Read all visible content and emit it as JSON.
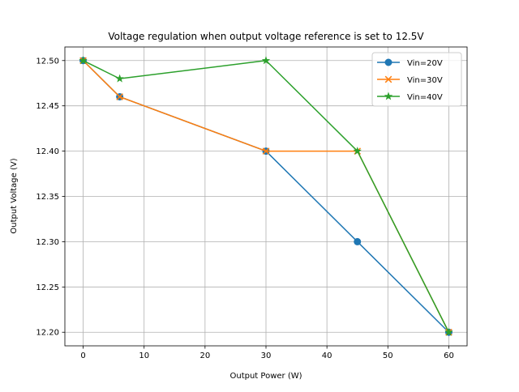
{
  "chart_data": {
    "type": "line",
    "title": "Voltage regulation when output voltage reference is set to 12.5V",
    "xlabel": "Output Power (W)",
    "ylabel": "Output Voltage (V)",
    "xlim": [
      -3,
      63
    ],
    "ylim": [
      12.185,
      12.515
    ],
    "grid": true,
    "legend_position": "top-right",
    "xticks": [
      0,
      10,
      20,
      30,
      40,
      50,
      60
    ],
    "xtick_labels": [
      "0",
      "10",
      "20",
      "30",
      "40",
      "50",
      "60"
    ],
    "yticks": [
      12.2,
      12.25,
      12.3,
      12.35,
      12.4,
      12.45,
      12.5
    ],
    "ytick_labels": [
      "12.20",
      "12.25",
      "12.30",
      "12.35",
      "12.40",
      "12.45",
      "12.50"
    ],
    "series": [
      {
        "name": "Vin=20V",
        "color": "#1f77b4",
        "marker": "circle",
        "x": [
          0,
          6,
          30,
          45,
          60
        ],
        "y": [
          12.5,
          12.46,
          12.4,
          12.3,
          12.2
        ]
      },
      {
        "name": "Vin=30V",
        "color": "#ff7f0e",
        "marker": "x",
        "x": [
          0,
          6,
          30,
          45,
          60
        ],
        "y": [
          12.5,
          12.46,
          12.4,
          12.4,
          12.2
        ]
      },
      {
        "name": "Vin=40V",
        "color": "#2ca02c",
        "marker": "star",
        "x": [
          0,
          6,
          30,
          45,
          60
        ],
        "y": [
          12.5,
          12.48,
          12.5,
          12.4,
          12.2
        ]
      }
    ]
  }
}
